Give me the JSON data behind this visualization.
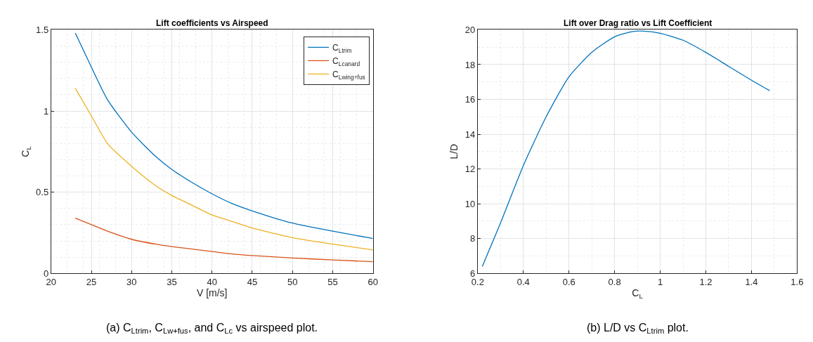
{
  "chart_data": [
    {
      "type": "line",
      "title": "Lift coefficients vs Airspeed",
      "xlabel": "V [m/s]",
      "ylabel": "C$_{L}$",
      "xlim": [
        20,
        60
      ],
      "xticks": [
        20,
        25,
        30,
        35,
        40,
        45,
        50,
        55,
        60
      ],
      "ylim": [
        0,
        1.5
      ],
      "yticks": [
        0,
        0.5,
        1,
        1.5
      ],
      "grid": true,
      "legend": "top right",
      "x": [
        23,
        25,
        27,
        30,
        33,
        35,
        37.5,
        40,
        42.5,
        45,
        50,
        55,
        60
      ],
      "series": [
        {
          "name": "C$_{L}$$_{trim}$",
          "color": "#0072bd",
          "values": [
            1.48,
            1.27,
            1.07,
            0.87,
            0.72,
            0.64,
            0.56,
            0.49,
            0.43,
            0.385,
            0.31,
            0.26,
            0.215
          ]
        },
        {
          "name": "C$_{L}$$_{canard}$",
          "color": "#d95319",
          "values": [
            0.34,
            0.3,
            0.26,
            0.21,
            0.18,
            0.165,
            0.15,
            0.135,
            0.12,
            0.11,
            0.095,
            0.083,
            0.072
          ]
        },
        {
          "name": "C$_{L}$$_{wing+fus}$",
          "color": "#edb120",
          "values": [
            1.14,
            0.97,
            0.8,
            0.66,
            0.54,
            0.48,
            0.42,
            0.36,
            0.32,
            0.28,
            0.22,
            0.18,
            0.145
          ]
        }
      ],
      "annotations": [
        "(a) C$_{L}$$_{trim}$, C$_{L}$$_{w+fus}$, and C$_{L}$$_{c}$ vs airspeed plot."
      ]
    },
    {
      "type": "line",
      "title": "Lift over Drag ratio vs Lift Coefficient",
      "xlabel": "C$_{L}$",
      "ylabel": "L/D",
      "xlim": [
        0.2,
        1.6
      ],
      "xticks": [
        0.2,
        0.4,
        0.6,
        0.8,
        1,
        1.2,
        1.4,
        1.6
      ],
      "ylim": [
        6,
        20
      ],
      "yticks": [
        6,
        8,
        10,
        12,
        14,
        16,
        18,
        20
      ],
      "grid": true,
      "x": [
        0.22,
        0.3,
        0.4,
        0.5,
        0.6,
        0.7,
        0.8,
        0.88,
        0.93,
        1.0,
        1.1,
        1.2,
        1.3,
        1.4,
        1.48
      ],
      "series": [
        {
          "color": "#0072bd",
          "values": [
            6.4,
            8.9,
            12.2,
            15.0,
            17.3,
            18.7,
            19.6,
            19.9,
            19.92,
            19.8,
            19.4,
            18.7,
            17.9,
            17.1,
            16.5
          ]
        }
      ],
      "annotations": [
        "(b) L/D vs C$_{L}$$_{trim}$ plot."
      ]
    }
  ]
}
